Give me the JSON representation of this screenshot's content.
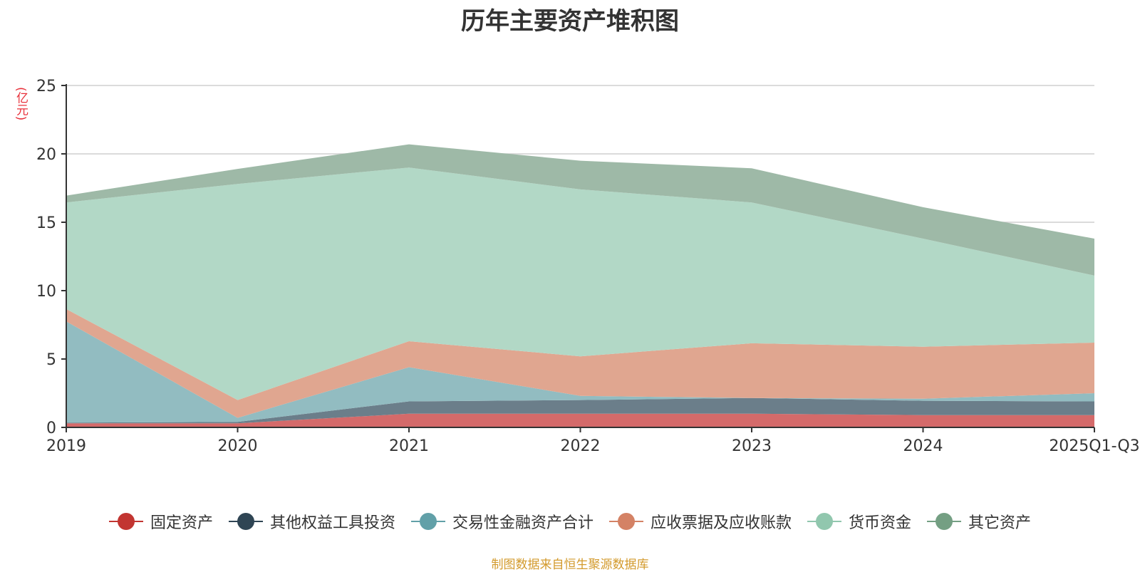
{
  "chart_data": {
    "type": "area",
    "stacked": true,
    "title": "历年主要资产堆积图",
    "ylabel": "(亿元)",
    "categories": [
      "2019",
      "2020",
      "2021",
      "2022",
      "2023",
      "2024",
      "2025Q1-Q3"
    ],
    "ylim": [
      0,
      25
    ],
    "yticks": [
      0,
      5,
      10,
      15,
      20,
      25
    ],
    "grid": true,
    "legend_position": "bottom",
    "series": [
      {
        "name": "固定资产",
        "color": "#c23531",
        "fill": "#d46a6a",
        "values": [
          0.3,
          0.3,
          1.0,
          1.0,
          1.0,
          0.9,
          0.9
        ]
      },
      {
        "name": "其他权益工具投资",
        "color": "#2f4554",
        "fill": "#6b7e8a",
        "values": [
          0.05,
          0.1,
          0.9,
          1.0,
          1.15,
          1.05,
          1.0
        ]
      },
      {
        "name": "交易性金融资产合计",
        "color": "#61a0a8",
        "fill": "#92bcc1",
        "values": [
          7.4,
          0.3,
          2.5,
          0.3,
          0.0,
          0.15,
          0.6
        ]
      },
      {
        "name": "应收票据及应收账款",
        "color": "#d48265",
        "fill": "#e0a690",
        "values": [
          0.9,
          1.3,
          1.9,
          2.9,
          4.0,
          3.8,
          3.7
        ]
      },
      {
        "name": "货币资金",
        "color": "#91c7ae",
        "fill": "#b2d8c6",
        "values": [
          7.8,
          15.8,
          12.7,
          12.2,
          10.3,
          7.9,
          4.9
        ]
      },
      {
        "name": "其它资产",
        "color": "#749f83",
        "fill": "#9eb9a7",
        "values": [
          0.5,
          1.1,
          1.7,
          2.1,
          2.5,
          2.3,
          2.7
        ]
      }
    ],
    "source_note": "制图数据来自恒生聚源数据库"
  }
}
